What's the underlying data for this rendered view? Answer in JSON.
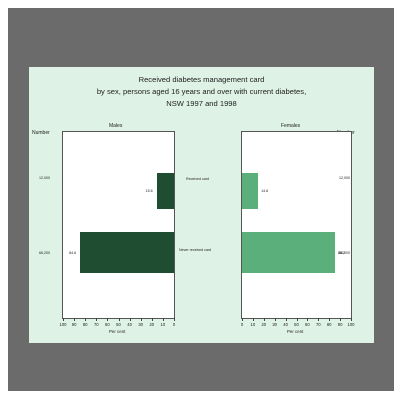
{
  "chart_data": {
    "type": "bar",
    "title": "Received diabetes management card",
    "subtitle_lines": [
      "by sex, persons aged 16 years and over with current diabetes,",
      "NSW 1997 and 1998"
    ],
    "categories": [
      "Received card",
      "Never received card"
    ],
    "left_axis_label": "Number",
    "panels": [
      {
        "name": "Males",
        "direction": "reversed",
        "values": [
          15.6,
          84.6
        ],
        "counts": [
          "12,000",
          "66,200"
        ],
        "color": "#1e4d31",
        "xlim": [
          0,
          100
        ],
        "ticks": [
          "100",
          "90",
          "80",
          "70",
          "60",
          "50",
          "40",
          "30",
          "20",
          "10",
          "0"
        ],
        "xlabel": "Per cent"
      },
      {
        "name": "Females",
        "direction": "normal",
        "values": [
          14.8,
          85.2
        ],
        "counts": [
          "12,000",
          "66,000"
        ],
        "color": "#5aaf7a",
        "xlim": [
          0,
          100
        ],
        "ticks": [
          "0",
          "10",
          "20",
          "30",
          "40",
          "50",
          "60",
          "70",
          "80",
          "90",
          "100"
        ],
        "xlabel": "Per cent"
      }
    ],
    "grid": false,
    "legend": "none"
  }
}
